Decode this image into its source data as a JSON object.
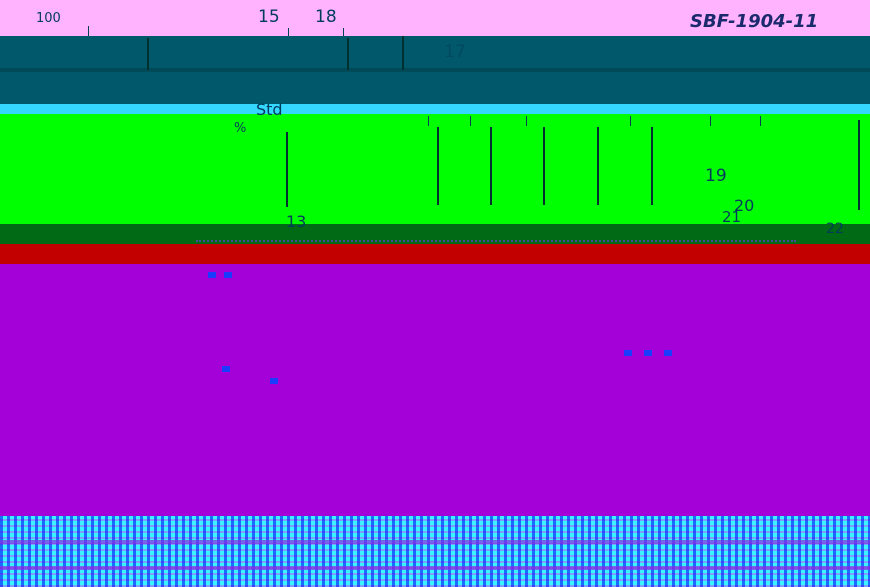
{
  "labels": {
    "top_left": "100",
    "top_15": "15",
    "top_18": "18",
    "top_right": "SBF-1904-11",
    "l17": "17",
    "std": "Std",
    "pct": "%",
    "l19": "19",
    "l20": "20",
    "l21": "21",
    "l13": "13",
    "l22": "22"
  },
  "colors": {
    "pink": "#ff99ff",
    "teal": "#005a6e",
    "cyan": "#33ccff",
    "green": "#00ff00",
    "purple": "#a000dd",
    "red": "#cc0000"
  }
}
